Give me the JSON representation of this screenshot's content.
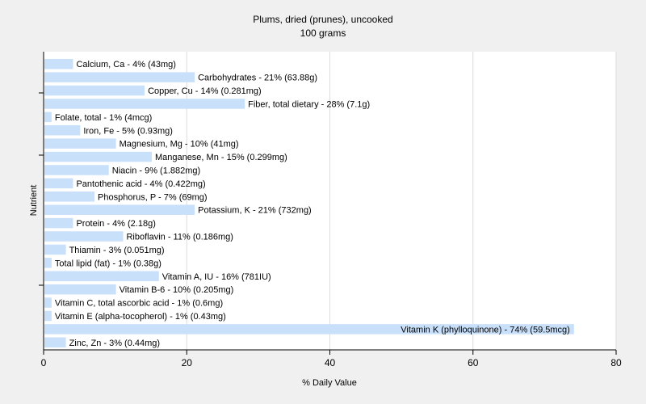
{
  "chart_data": {
    "type": "bar",
    "orientation": "horizontal",
    "title": "Plums, dried (prunes), uncooked",
    "subtitle": "100 grams",
    "xlabel": "% Daily Value",
    "ylabel": "Nutrient",
    "xlim": [
      0,
      80
    ],
    "xticks": [
      "0",
      "20",
      "40",
      "60",
      "80"
    ],
    "grid": true,
    "bar_color": "#c9e0fb",
    "categories": [
      "Calcium, Ca",
      "Carbohydrates",
      "Copper, Cu",
      "Fiber, total dietary",
      "Folate, total",
      "Iron, Fe",
      "Magnesium, Mg",
      "Manganese, Mn",
      "Niacin",
      "Pantothenic acid",
      "Phosphorus, P",
      "Potassium, K",
      "Protein",
      "Riboflavin",
      "Thiamin",
      "Total lipid (fat)",
      "Vitamin A, IU",
      "Vitamin B-6",
      "Vitamin C, total ascorbic acid",
      "Vitamin E (alpha-tocopherol)",
      "Vitamin K (phylloquinone)",
      "Zinc, Zn"
    ],
    "values": [
      4,
      21,
      14,
      28,
      1,
      5,
      10,
      15,
      9,
      4,
      7,
      21,
      4,
      11,
      3,
      1,
      16,
      10,
      1,
      1,
      74,
      3
    ],
    "labels": [
      "Calcium, Ca - 4% (43mg)",
      "Carbohydrates - 21% (63.88g)",
      "Copper, Cu - 14% (0.281mg)",
      "Fiber, total dietary - 28% (7.1g)",
      "Folate, total - 1% (4mcg)",
      "Iron, Fe - 5% (0.93mg)",
      "Magnesium, Mg - 10% (41mg)",
      "Manganese, Mn - 15% (0.299mg)",
      "Niacin - 9% (1.882mg)",
      "Pantothenic acid - 4% (0.422mg)",
      "Phosphorus, P - 7% (69mg)",
      "Potassium, K - 21% (732mg)",
      "Protein - 4% (2.18g)",
      "Riboflavin - 11% (0.186mg)",
      "Thiamin - 3% (0.051mg)",
      "Total lipid (fat) - 1% (0.38g)",
      "Vitamin A, IU - 16% (781IU)",
      "Vitamin B-6 - 10% (0.205mg)",
      "Vitamin C, total ascorbic acid - 1% (0.6mg)",
      "Vitamin E (alpha-tocopherol) - 1% (0.43mg)",
      "Vitamin K (phylloquinone) - 74% (59.5mcg)",
      "Zinc, Zn - 3% (0.44mg)"
    ]
  }
}
